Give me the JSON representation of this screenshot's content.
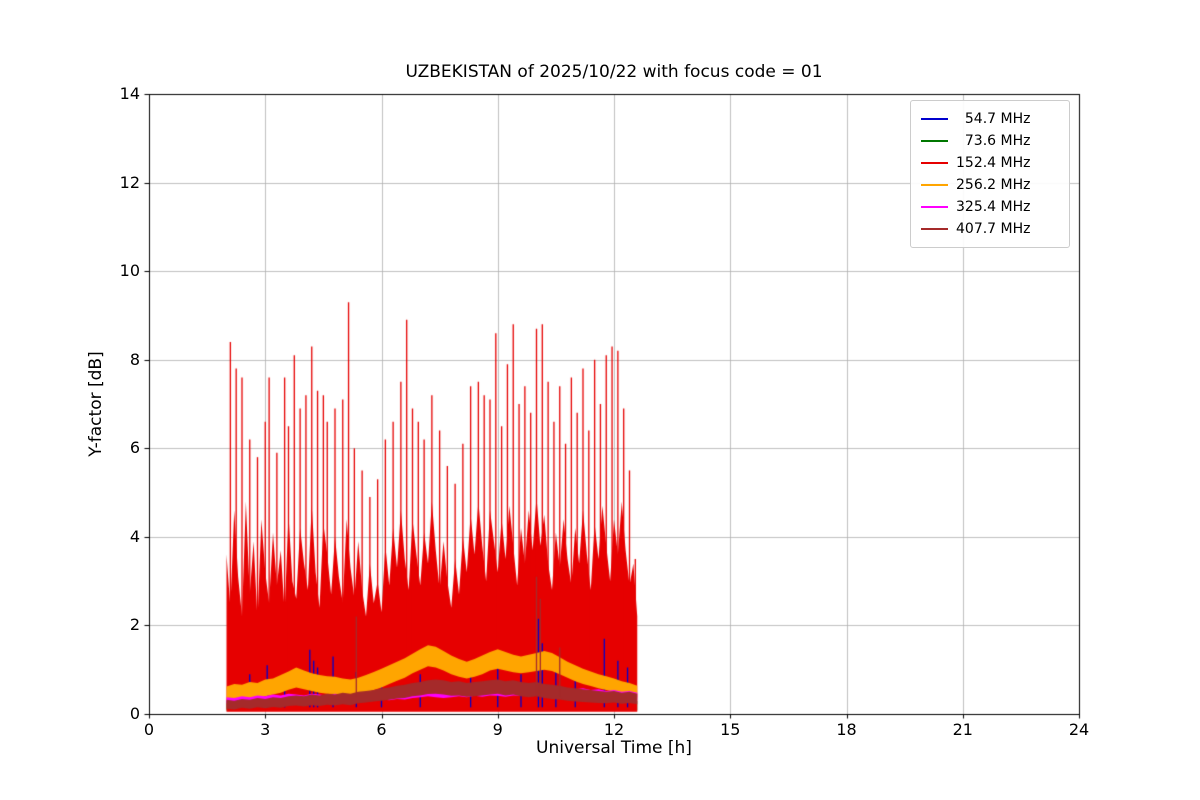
{
  "figure": {
    "background": "#ffffff"
  },
  "chart_data": {
    "type": "line",
    "title": "UZBEKISTAN of 2025/10/22 with focus code = 01",
    "xlabel": "Universal Time [h]",
    "ylabel": "Y-factor [dB]",
    "xlim": [
      0,
      24
    ],
    "ylim": [
      0,
      14
    ],
    "xticks": [
      0,
      3,
      6,
      9,
      12,
      15,
      18,
      21,
      24
    ],
    "yticks": [
      0,
      2,
      4,
      6,
      8,
      10,
      12,
      14
    ],
    "grid": true,
    "grid_color": "#b0b0b0",
    "frame_color": "#000000",
    "legend_position": "upper right",
    "series": [
      {
        "name": "  54.7 MHz",
        "color": "#0000cd",
        "style": "spikes",
        "z": 3,
        "spike_base": 0.15,
        "spikes": [
          [
            2.6,
            0.9
          ],
          [
            3.05,
            1.1
          ],
          [
            3.5,
            0.8
          ],
          [
            4.15,
            1.45
          ],
          [
            4.25,
            1.2
          ],
          [
            4.35,
            1.05
          ],
          [
            4.75,
            1.3
          ],
          [
            5.35,
            0.95
          ],
          [
            6.0,
            0.85
          ],
          [
            7.0,
            0.9
          ],
          [
            8.3,
            1.0
          ],
          [
            9.0,
            1.15
          ],
          [
            9.6,
            0.9
          ],
          [
            10.05,
            2.15
          ],
          [
            10.15,
            1.6
          ],
          [
            10.5,
            1.0
          ],
          [
            11.0,
            0.95
          ],
          [
            11.75,
            1.7
          ],
          [
            12.1,
            1.2
          ],
          [
            12.35,
            1.05
          ]
        ]
      },
      {
        "name": "  73.6 MHz",
        "color": "#007700",
        "style": "band",
        "z": 1,
        "x0": 2.0,
        "dx": 10.6,
        "lo": [
          0.08,
          0.08
        ],
        "hi": [
          0.3,
          0.3
        ]
      },
      {
        "name": "152.4 MHz",
        "color": "#e60000",
        "style": "mass",
        "z": 2,
        "x0": 2.0,
        "dx": 0.1,
        "baseline": 0.05,
        "hi": [
          3.6,
          2.4,
          4.6,
          3.1,
          2.2,
          4.8,
          2.7,
          3.9,
          2.1,
          4.4,
          3.2,
          2.5,
          4.1,
          2.9,
          3.7,
          2.3,
          4.5,
          3.0,
          2.6,
          4.2,
          3.4,
          2.8,
          4.7,
          3.2,
          2.4,
          4.3,
          3.6,
          2.7,
          4.0,
          3.1,
          2.5,
          4.4,
          3.3,
          2.6,
          3.9,
          2.8,
          2.2,
          3.4,
          2.5,
          3.0,
          2.3,
          3.8,
          2.9,
          4.2,
          3.3,
          4.6,
          3.5,
          2.8,
          4.4,
          3.6,
          2.9,
          4.1,
          3.4,
          4.8,
          3.7,
          2.8,
          3.9,
          3.0,
          2.4,
          3.5,
          2.7,
          4.0,
          3.2,
          4.5,
          3.6,
          4.8,
          3.8,
          3.0,
          4.6,
          3.9,
          3.2,
          4.4,
          3.5,
          4.7,
          3.8,
          2.9,
          4.2,
          3.4,
          4.6,
          3.7,
          4.9,
          3.8,
          4.5,
          3.4,
          2.8,
          4.1,
          3.3,
          4.4,
          3.5,
          2.9,
          4.2,
          3.4,
          4.6,
          3.6,
          2.8,
          4.3,
          3.5,
          4.7,
          3.8,
          3.0,
          4.4,
          3.6,
          4.8,
          3.7,
          2.9,
          3.4,
          2.2
        ],
        "spike_base": 0.3,
        "spikes": [
          [
            2.1,
            8.4
          ],
          [
            2.25,
            7.8
          ],
          [
            2.4,
            7.6
          ],
          [
            2.6,
            6.2
          ],
          [
            2.8,
            5.8
          ],
          [
            3.0,
            6.6
          ],
          [
            3.1,
            7.6
          ],
          [
            3.3,
            5.9
          ],
          [
            3.5,
            7.6
          ],
          [
            3.6,
            6.5
          ],
          [
            3.75,
            8.1
          ],
          [
            3.9,
            6.9
          ],
          [
            4.05,
            7.2
          ],
          [
            4.2,
            8.3
          ],
          [
            4.35,
            7.3
          ],
          [
            4.5,
            7.2
          ],
          [
            4.6,
            6.6
          ],
          [
            4.8,
            6.9
          ],
          [
            5.0,
            7.1
          ],
          [
            5.15,
            9.3
          ],
          [
            5.3,
            6.0
          ],
          [
            5.5,
            5.5
          ],
          [
            5.7,
            4.9
          ],
          [
            5.9,
            5.3
          ],
          [
            6.1,
            6.2
          ],
          [
            6.3,
            6.6
          ],
          [
            6.5,
            7.5
          ],
          [
            6.65,
            8.9
          ],
          [
            6.8,
            6.9
          ],
          [
            6.95,
            6.6
          ],
          [
            7.1,
            6.2
          ],
          [
            7.3,
            7.2
          ],
          [
            7.5,
            6.4
          ],
          [
            7.7,
            5.6
          ],
          [
            7.9,
            5.2
          ],
          [
            8.1,
            6.1
          ],
          [
            8.3,
            7.4
          ],
          [
            8.5,
            7.5
          ],
          [
            8.65,
            7.2
          ],
          [
            8.8,
            7.1
          ],
          [
            8.95,
            8.6
          ],
          [
            9.1,
            6.5
          ],
          [
            9.25,
            7.9
          ],
          [
            9.4,
            8.8
          ],
          [
            9.55,
            7.0
          ],
          [
            9.7,
            7.4
          ],
          [
            9.85,
            6.8
          ],
          [
            10.0,
            8.7
          ],
          [
            10.15,
            8.8
          ],
          [
            10.3,
            7.5
          ],
          [
            10.45,
            6.6
          ],
          [
            10.6,
            7.4
          ],
          [
            10.75,
            6.1
          ],
          [
            10.9,
            7.6
          ],
          [
            11.05,
            6.8
          ],
          [
            11.2,
            7.8
          ],
          [
            11.35,
            6.4
          ],
          [
            11.5,
            8.0
          ],
          [
            11.65,
            7.0
          ],
          [
            11.8,
            8.1
          ],
          [
            11.95,
            8.3
          ],
          [
            12.1,
            8.2
          ],
          [
            12.25,
            6.9
          ],
          [
            12.4,
            5.5
          ],
          [
            12.55,
            3.5
          ]
        ]
      },
      {
        "name": "256.2 MHz",
        "color": "#ffa500",
        "style": "band",
        "z": 4,
        "x0": 2.0,
        "dx": 0.2,
        "lo": [
          0.3,
          0.28,
          0.32,
          0.34,
          0.36,
          0.4,
          0.44,
          0.48,
          0.55,
          0.6,
          0.56,
          0.52,
          0.48,
          0.46,
          0.45,
          0.43,
          0.42,
          0.44,
          0.48,
          0.54,
          0.6,
          0.68,
          0.75,
          0.82,
          0.92,
          1.0,
          1.08,
          1.05,
          0.98,
          0.9,
          0.84,
          0.8,
          0.84,
          0.9,
          0.98,
          1.02,
          0.98,
          0.94,
          0.92,
          0.94,
          0.97,
          1.0,
          0.97,
          0.9,
          0.82,
          0.74,
          0.68,
          0.63,
          0.58,
          0.54,
          0.5,
          0.46,
          0.42,
          0.38
        ],
        "hi": [
          0.62,
          0.68,
          0.66,
          0.72,
          0.7,
          0.78,
          0.8,
          0.88,
          0.96,
          1.05,
          0.98,
          0.92,
          0.88,
          0.85,
          0.84,
          0.8,
          0.78,
          0.82,
          0.88,
          0.95,
          1.02,
          1.1,
          1.18,
          1.26,
          1.36,
          1.46,
          1.55,
          1.52,
          1.42,
          1.32,
          1.24,
          1.18,
          1.24,
          1.32,
          1.4,
          1.46,
          1.4,
          1.34,
          1.3,
          1.34,
          1.38,
          1.42,
          1.38,
          1.28,
          1.18,
          1.1,
          1.02,
          0.96,
          0.9,
          0.85,
          0.8,
          0.74,
          0.7,
          0.64
        ]
      },
      {
        "name": "325.4 MHz",
        "color": "#ff00ff",
        "style": "band",
        "z": 5,
        "x0": 2.0,
        "dx": 0.2,
        "lo": [
          0.24,
          0.22,
          0.26,
          0.24,
          0.27,
          0.25,
          0.28,
          0.27,
          0.3,
          0.28,
          0.27,
          0.3,
          0.28,
          0.27,
          0.3,
          0.28,
          0.27,
          0.3,
          0.32,
          0.3,
          0.33,
          0.31,
          0.34,
          0.33,
          0.36,
          0.38,
          0.4,
          0.38,
          0.36,
          0.38,
          0.4,
          0.38,
          0.41,
          0.39,
          0.42,
          0.41,
          0.39,
          0.42,
          0.41,
          0.42,
          0.44,
          0.42,
          0.41,
          0.42,
          0.39,
          0.38,
          0.39,
          0.36,
          0.38,
          0.35,
          0.36,
          0.33,
          0.35,
          0.32
        ],
        "hi": [
          0.38,
          0.36,
          0.4,
          0.38,
          0.42,
          0.4,
          0.44,
          0.42,
          0.46,
          0.44,
          0.42,
          0.46,
          0.44,
          0.42,
          0.46,
          0.44,
          0.42,
          0.46,
          0.48,
          0.46,
          0.5,
          0.48,
          0.52,
          0.5,
          0.54,
          0.56,
          0.58,
          0.56,
          0.54,
          0.56,
          0.58,
          0.56,
          0.6,
          0.58,
          0.62,
          0.6,
          0.58,
          0.62,
          0.6,
          0.62,
          0.64,
          0.62,
          0.6,
          0.62,
          0.58,
          0.56,
          0.58,
          0.54,
          0.56,
          0.52,
          0.54,
          0.5,
          0.52,
          0.48
        ]
      },
      {
        "name": "407.7 MHz",
        "color": "#a52a2a",
        "style": "band",
        "z": 6,
        "x0": 2.0,
        "dx": 0.2,
        "lo": [
          0.12,
          0.1,
          0.14,
          0.12,
          0.15,
          0.13,
          0.16,
          0.14,
          0.18,
          0.19,
          0.17,
          0.2,
          0.18,
          0.21,
          0.19,
          0.22,
          0.2,
          0.24,
          0.26,
          0.28,
          0.3,
          0.32,
          0.35,
          0.36,
          0.4,
          0.42,
          0.45,
          0.46,
          0.44,
          0.41,
          0.42,
          0.39,
          0.4,
          0.42,
          0.44,
          0.46,
          0.42,
          0.44,
          0.4,
          0.38,
          0.4,
          0.36,
          0.34,
          0.33,
          0.3,
          0.28,
          0.27,
          0.26,
          0.25,
          0.24,
          0.26,
          0.23,
          0.25,
          0.22
        ],
        "hi": [
          0.32,
          0.3,
          0.34,
          0.32,
          0.36,
          0.34,
          0.38,
          0.36,
          0.4,
          0.42,
          0.4,
          0.44,
          0.42,
          0.46,
          0.44,
          0.48,
          0.46,
          0.5,
          0.52,
          0.54,
          0.58,
          0.6,
          0.64,
          0.66,
          0.7,
          0.72,
          0.76,
          0.78,
          0.76,
          0.72,
          0.74,
          0.7,
          0.72,
          0.74,
          0.76,
          0.78,
          0.74,
          0.76,
          0.72,
          0.7,
          0.72,
          0.68,
          0.66,
          0.64,
          0.6,
          0.58,
          0.56,
          0.54,
          0.52,
          0.5,
          0.52,
          0.48,
          0.5,
          0.46
        ],
        "spike_base": 0.4,
        "spikes": [
          [
            5.35,
            2.2
          ],
          [
            10.0,
            3.1
          ],
          [
            10.1,
            2.6
          ],
          [
            10.6,
            1.5
          ]
        ]
      }
    ]
  }
}
